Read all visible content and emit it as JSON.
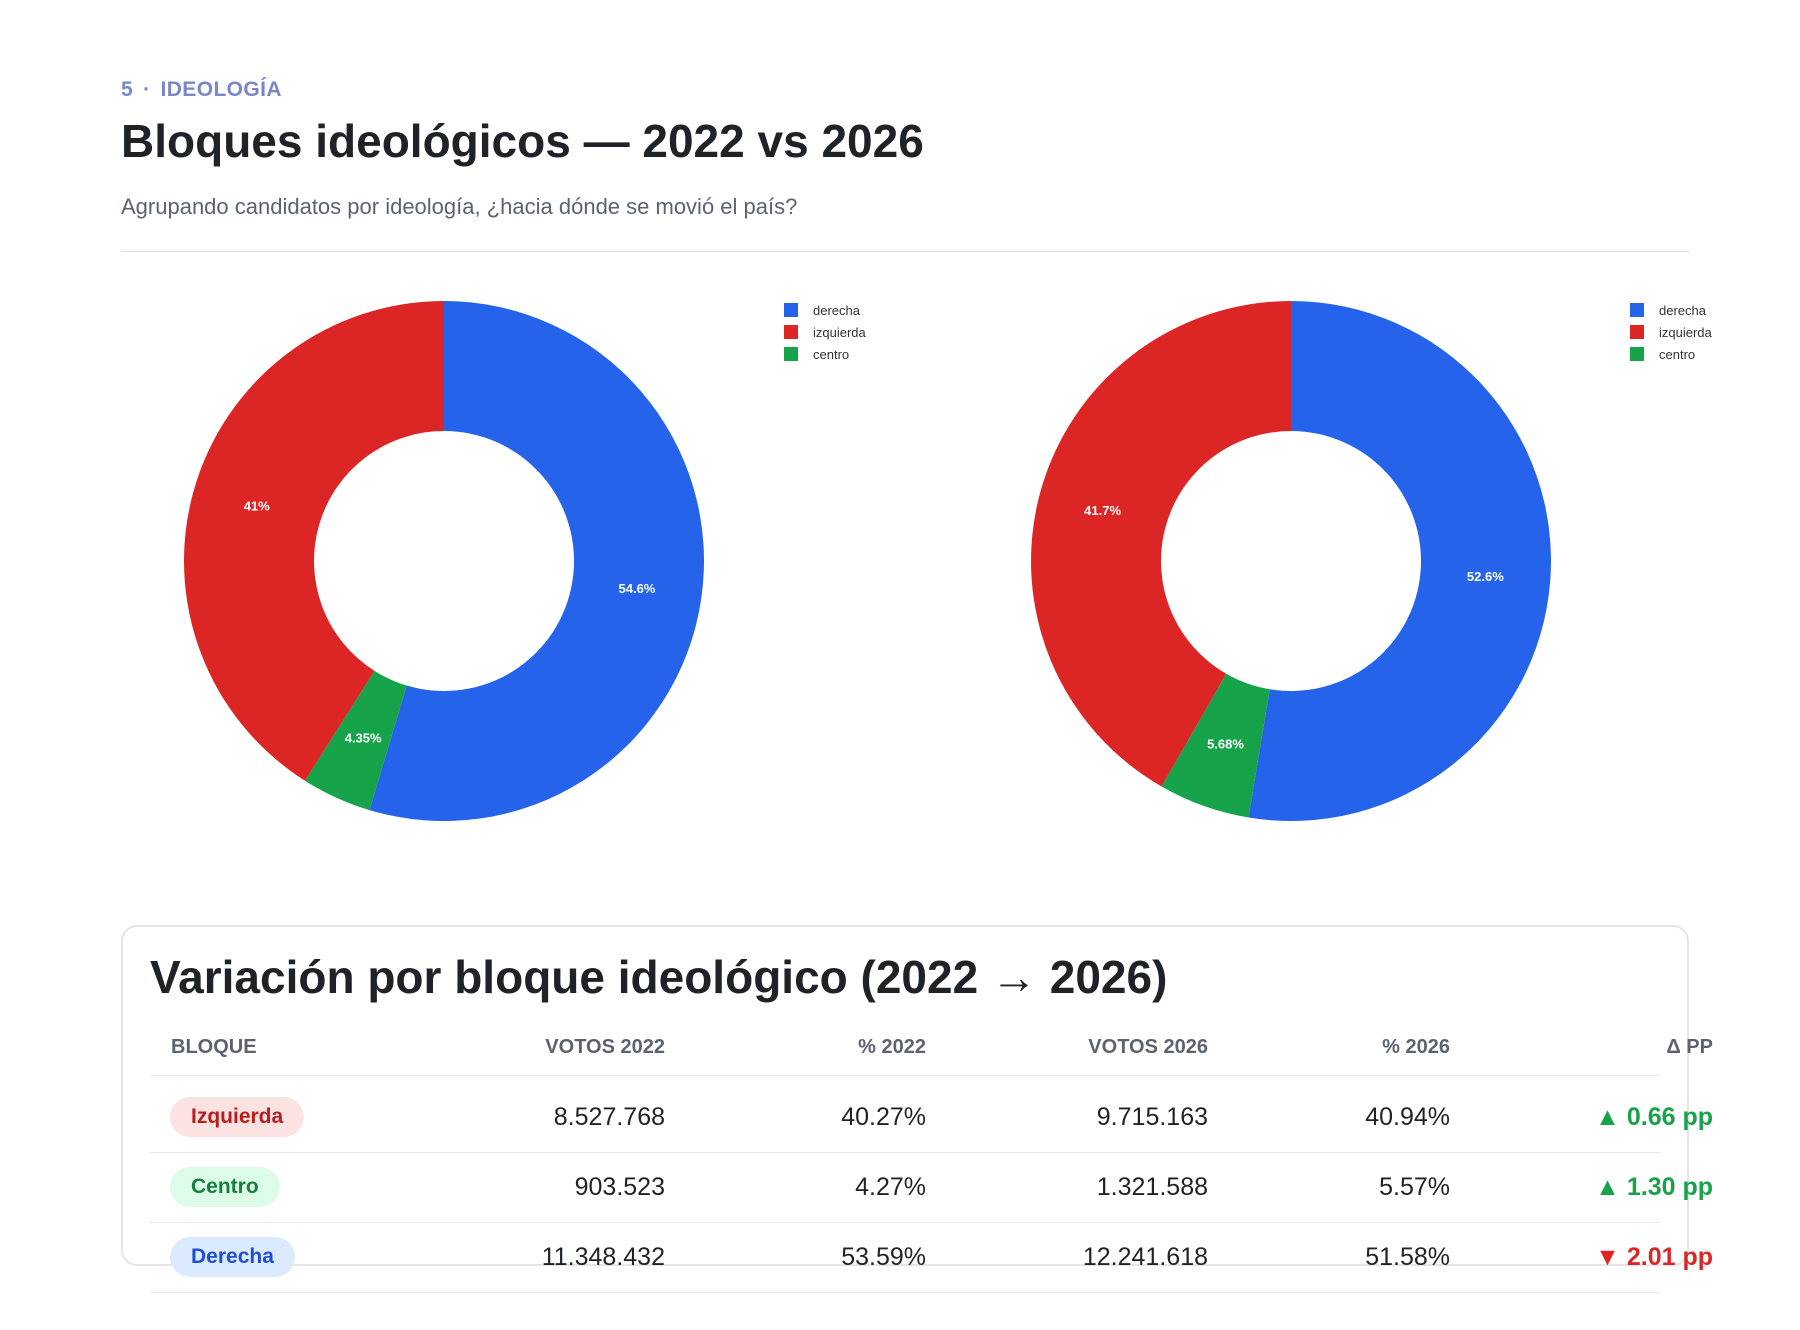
{
  "section": {
    "number": "5",
    "separator": "·",
    "label": "IDEOLOGÍA"
  },
  "header": {
    "title": "Bloques ideológicos — 2022 vs 2026",
    "subtitle": "Agrupando candidatos por ideología, ¿hacia dónde se movió el país?"
  },
  "colors": {
    "derecha": "#2563eb",
    "izquierda": "#dc2626",
    "centro": "#16a34a"
  },
  "chart_data": [
    {
      "type": "pie",
      "variant": "donut",
      "title": "",
      "legend_position": "top-right",
      "slices": [
        {
          "name": "derecha",
          "value": 54.6,
          "label": "54.6%",
          "color": "#2563eb"
        },
        {
          "name": "centro",
          "value": 4.35,
          "label": "4.35%",
          "color": "#16a34a"
        },
        {
          "name": "izquierda",
          "value": 41,
          "label": "41%",
          "color": "#dc2626"
        }
      ],
      "legend": [
        "derecha",
        "izquierda",
        "centro"
      ]
    },
    {
      "type": "pie",
      "variant": "donut",
      "title": "",
      "legend_position": "top-right",
      "slices": [
        {
          "name": "derecha",
          "value": 52.6,
          "label": "52.6%",
          "color": "#2563eb"
        },
        {
          "name": "centro",
          "value": 5.68,
          "label": "5.68%",
          "color": "#16a34a"
        },
        {
          "name": "izquierda",
          "value": 41.7,
          "label": "41.7%",
          "color": "#dc2626"
        }
      ],
      "legend": [
        "derecha",
        "izquierda",
        "centro"
      ]
    }
  ],
  "table": {
    "title": "Variación por bloque ideológico (2022 → 2026)",
    "columns": [
      "BLOQUE",
      "VOTOS 2022",
      "% 2022",
      "VOTOS 2026",
      "% 2026",
      "Δ PP"
    ],
    "rows": [
      {
        "bloque": "Izquierda",
        "votos_2022": "8.527.768",
        "pct_2022": "40.27%",
        "votos_2026": "9.715.163",
        "pct_2026": "40.94%",
        "delta": "▲ 0.66 pp",
        "trend": "up",
        "badge_bg": "#fde2e2",
        "badge_fg": "#b91c1c"
      },
      {
        "bloque": "Centro",
        "votos_2022": "903.523",
        "pct_2022": "4.27%",
        "votos_2026": "1.321.588",
        "pct_2026": "5.57%",
        "delta": "▲ 1.30 pp",
        "trend": "up",
        "badge_bg": "#dcfce7",
        "badge_fg": "#15803d"
      },
      {
        "bloque": "Derecha",
        "votos_2022": "11.348.432",
        "pct_2022": "53.59%",
        "votos_2026": "12.241.618",
        "pct_2026": "51.58%",
        "delta": "▼ 2.01 pp",
        "trend": "down",
        "badge_bg": "#dbeafe",
        "badge_fg": "#1d4ed8"
      }
    ],
    "trend_colors": {
      "up": "#16a34a",
      "down": "#dc2626"
    }
  }
}
